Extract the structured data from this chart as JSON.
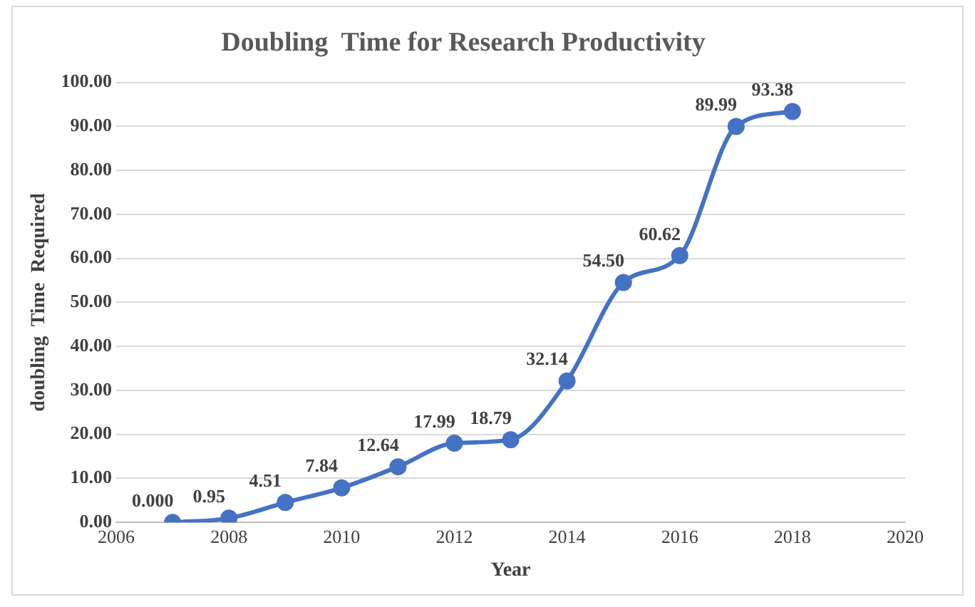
{
  "chart_data": {
    "type": "line",
    "title": "Doubling  Time for Research Productivity",
    "xlabel": "Year",
    "ylabel": "doubling  Time  Required",
    "x": [
      2007,
      2008,
      2009,
      2010,
      2011,
      2012,
      2013,
      2014,
      2015,
      2016,
      2017,
      2018
    ],
    "series": [
      {
        "color": "#4472c4",
        "values": [
          0,
          0.95,
          4.51,
          7.84,
          12.64,
          17.99,
          18.79,
          32.14,
          54.5,
          60.62,
          89.99,
          93.38
        ],
        "value_labels": [
          "0.000",
          "0.95",
          "4.51",
          "7.84",
          "12.64",
          "17.99",
          "18.79",
          "32.14",
          "54.50",
          "60.62",
          "89.99",
          "93.38"
        ]
      }
    ],
    "xlim": [
      2006,
      2020
    ],
    "xticks": [
      2006,
      2008,
      2010,
      2012,
      2014,
      2016,
      2018,
      2020
    ],
    "ylim": [
      0,
      100
    ],
    "yticks": [
      {
        "value": 0,
        "label": "0.00"
      },
      {
        "value": 10,
        "label": "10.00"
      },
      {
        "value": 20,
        "label": "20.00"
      },
      {
        "value": 30,
        "label": "30.00"
      },
      {
        "value": 40,
        "label": "40.00"
      },
      {
        "value": 50,
        "label": "50.00"
      },
      {
        "value": 60,
        "label": "60.00"
      },
      {
        "value": 70,
        "label": "70.00"
      },
      {
        "value": 80,
        "label": "80.00"
      },
      {
        "value": 90,
        "label": "90.00"
      },
      {
        "value": 100,
        "label": "100.00"
      }
    ],
    "grid": "y",
    "legend": false,
    "marker": "circle",
    "line_style": "solid"
  }
}
